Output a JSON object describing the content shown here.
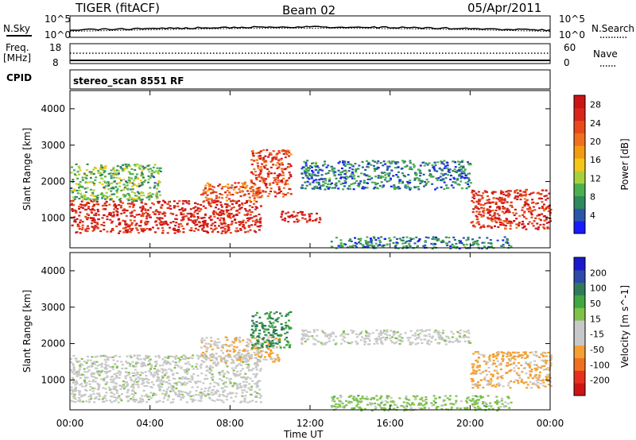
{
  "header": {
    "radar": "TIGER (fitACF)",
    "beam": "Beam 02",
    "date": "05/Apr/2011"
  },
  "noise_panel": {
    "left_label": "N.Sky",
    "left_ticks": [
      "10^5",
      "10^0"
    ],
    "right_label": "N.Search",
    "right_ticks": [
      "10^5",
      "10^0"
    ]
  },
  "freq_panel": {
    "left_label_top": "Freq.",
    "left_label_bottom": "[MHz]",
    "left_ticks": [
      "18",
      "8"
    ],
    "right_label": "Nave",
    "right_ticks": [
      "60",
      "0"
    ]
  },
  "cpid_panel": {
    "label": "CPID",
    "text": "stereo_scan 8551 RF"
  },
  "x_axis": {
    "label": "Time UT",
    "ticks": [
      "00:00",
      "04:00",
      "08:00",
      "12:00",
      "16:00",
      "20:00",
      "00:00"
    ]
  },
  "colors": {
    "power_scale": [
      "#1a1aff",
      "#2c57a8",
      "#2f8a5c",
      "#4caf50",
      "#a6d13d",
      "#f5c518",
      "#f39c12",
      "#f07020",
      "#e84a1a",
      "#d8261a",
      "#cc1414"
    ],
    "velocity_scale": [
      "#cc1414",
      "#e83020",
      "#f07020",
      "#f5a030",
      "#c8c8c8",
      "#c8c8c8",
      "#7fc24a",
      "#3fa840",
      "#2f7a5a",
      "#2c4aa8",
      "#1a1acc"
    ],
    "ground_scatter": "#c0c0c0"
  },
  "chart_data": [
    {
      "type": "heatmap",
      "title": "",
      "quantity": "Power",
      "ylabel": "Slant Range [km]",
      "xlabel": "",
      "x_ticks": [
        "00:00",
        "04:00",
        "08:00",
        "12:00",
        "16:00",
        "20:00",
        "00:00"
      ],
      "y_ticks": [
        1000,
        2000,
        3000,
        4000
      ],
      "xlim_hours": [
        0,
        24
      ],
      "ylim_km": [
        180,
        4500
      ],
      "colorbar": {
        "label": "Power [dB]",
        "ticks": [
          4,
          8,
          12,
          16,
          20,
          24,
          28
        ],
        "range": [
          0,
          30
        ]
      },
      "regions": [
        {
          "t": [
            0,
            9.5
          ],
          "r": [
            600,
            1500
          ],
          "value": 27
        },
        {
          "t": [
            0,
            4.5
          ],
          "r": [
            1500,
            2500
          ],
          "value": 10
        },
        {
          "t": [
            6.5,
            9.5
          ],
          "r": [
            1500,
            2000
          ],
          "value": 22
        },
        {
          "t": [
            9.0,
            11.0
          ],
          "r": [
            1600,
            2900
          ],
          "value": 24
        },
        {
          "t": [
            10.5,
            12.5
          ],
          "r": [
            900,
            1200
          ],
          "value": 28
        },
        {
          "t": [
            11.5,
            20.0
          ],
          "r": [
            1800,
            2600
          ],
          "value": 6
        },
        {
          "t": [
            20.0,
            24.0
          ],
          "r": [
            700,
            1800
          ],
          "value": 26
        },
        {
          "t": [
            13.0,
            22.0
          ],
          "r": [
            180,
            500
          ],
          "value": 6
        }
      ]
    },
    {
      "type": "heatmap",
      "title": "",
      "quantity": "Velocity",
      "ylabel": "Slant Range [km]",
      "xlabel": "Time UT",
      "x_ticks": [
        "00:00",
        "04:00",
        "08:00",
        "12:00",
        "16:00",
        "20:00",
        "00:00"
      ],
      "y_ticks": [
        1000,
        2000,
        3000,
        4000
      ],
      "xlim_hours": [
        0,
        24
      ],
      "ylim_km": [
        180,
        4500
      ],
      "colorbar": {
        "label": "Velocity [m s^-1]",
        "ticks": [
          200,
          100,
          50,
          15,
          -15,
          -50,
          -100,
          -200
        ],
        "range": [
          -250,
          250
        ]
      },
      "regions": [
        {
          "t": [
            0,
            9.5
          ],
          "r": [
            400,
            1700
          ],
          "value": 0
        },
        {
          "t": [
            6.5,
            10.5
          ],
          "r": [
            1500,
            2200
          ],
          "value": -60
        },
        {
          "t": [
            9.0,
            11.0
          ],
          "r": [
            1900,
            2900
          ],
          "value": 120
        },
        {
          "t": [
            11.5,
            20.0
          ],
          "r": [
            2000,
            2400
          ],
          "value": 0
        },
        {
          "t": [
            20.0,
            24.0
          ],
          "r": [
            800,
            1800
          ],
          "value": -80
        },
        {
          "t": [
            13.0,
            22.0
          ],
          "r": [
            180,
            600
          ],
          "value": 40
        }
      ]
    }
  ]
}
